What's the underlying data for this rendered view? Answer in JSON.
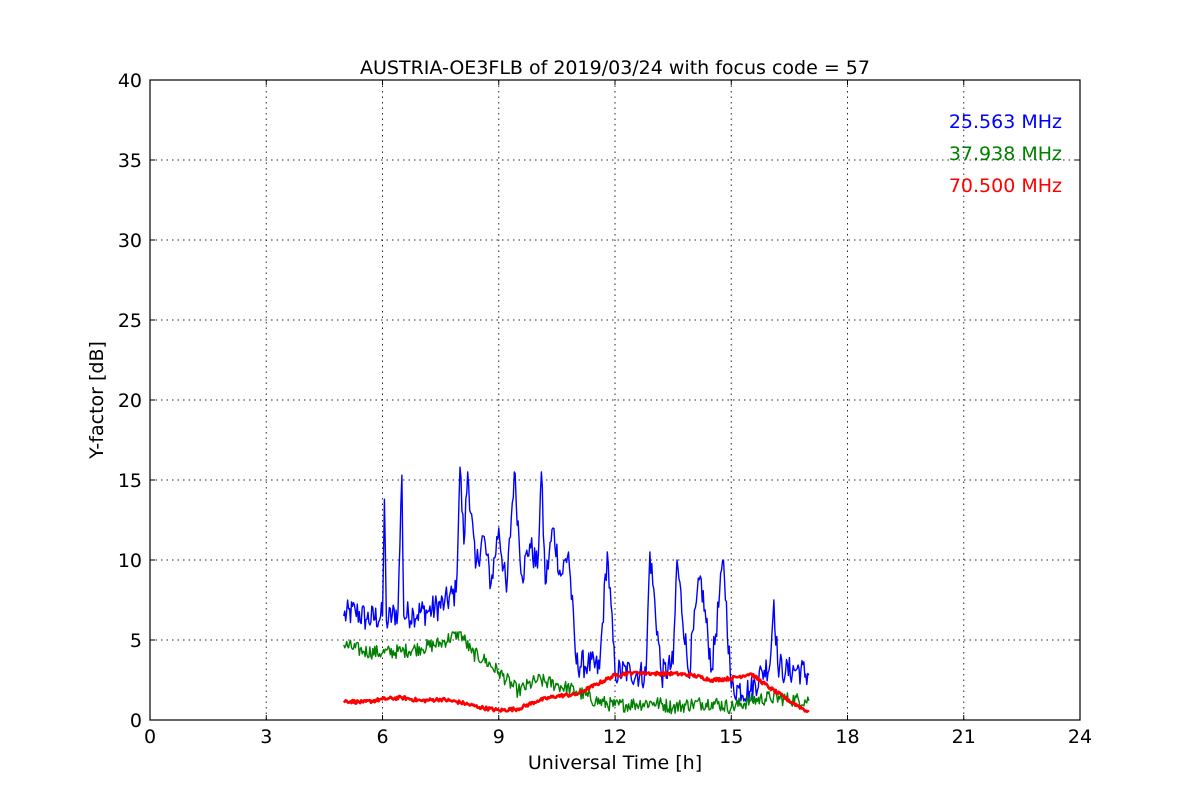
{
  "chart_data": {
    "type": "line",
    "title": "AUSTRIA-OE3FLB of 2019/03/24 with focus code = 57",
    "xlabel": "Universal Time [h]",
    "ylabel": "Y-factor [dB]",
    "xlim": [
      0,
      24
    ],
    "ylim": [
      0,
      40
    ],
    "xticks": [
      "0",
      "3",
      "6",
      "9",
      "12",
      "15",
      "18",
      "21",
      "24"
    ],
    "yticks": [
      "0",
      "5",
      "10",
      "15",
      "20",
      "25",
      "30",
      "35",
      "40"
    ],
    "grid": true,
    "legend_position": "top-right",
    "series": [
      {
        "name": "25.563 MHz",
        "color": "#0000ff",
        "x": [
          5.0,
          5.3,
          5.6,
          6.0,
          6.05,
          6.1,
          6.4,
          6.5,
          6.55,
          6.8,
          7.2,
          7.6,
          7.9,
          8.0,
          8.1,
          8.2,
          8.4,
          8.6,
          8.8,
          9.0,
          9.2,
          9.4,
          9.6,
          9.8,
          10.0,
          10.1,
          10.2,
          10.4,
          10.6,
          10.8,
          11.0,
          11.3,
          11.6,
          11.8,
          12.0,
          12.4,
          12.8,
          12.9,
          13.2,
          13.5,
          13.6,
          13.9,
          14.2,
          14.5,
          14.8,
          15.0,
          15.2,
          15.5,
          15.8,
          16.0,
          16.1,
          16.2,
          16.4,
          16.7,
          17.0
        ],
        "y": [
          6.5,
          6.8,
          6.3,
          6.5,
          13.8,
          6.2,
          6.8,
          15.3,
          6.5,
          6.7,
          6.8,
          7.3,
          8.0,
          15.8,
          11.0,
          15.5,
          9.5,
          11.5,
          8.5,
          12.0,
          8.0,
          15.5,
          9.0,
          11.0,
          9.5,
          15.5,
          8.5,
          12.0,
          9.0,
          10.5,
          3.5,
          3.5,
          3.2,
          10.5,
          3.0,
          3.0,
          2.8,
          10.5,
          2.8,
          3.5,
          10.0,
          3.0,
          9.0,
          3.2,
          10.0,
          2.0,
          2.0,
          1.8,
          3.0,
          3.5,
          7.5,
          3.5,
          3.0,
          3.2,
          2.8
        ]
      },
      {
        "name": "37.938 MHz",
        "color": "#008000",
        "x": [
          5.0,
          5.5,
          6.0,
          6.5,
          7.0,
          7.5,
          8.0,
          8.3,
          8.6,
          9.0,
          9.5,
          10.0,
          10.5,
          11.0,
          11.5,
          12.0,
          12.5,
          13.0,
          13.5,
          14.0,
          14.5,
          15.0,
          15.5,
          16.0,
          16.5,
          17.0
        ],
        "y": [
          4.7,
          4.3,
          4.2,
          4.3,
          4.5,
          4.8,
          5.5,
          4.2,
          3.8,
          3.0,
          1.8,
          2.5,
          2.2,
          1.8,
          1.2,
          0.9,
          1.0,
          1.1,
          0.8,
          1.0,
          1.1,
          0.8,
          1.2,
          1.4,
          1.3,
          1.2
        ]
      },
      {
        "name": "70.500 MHz",
        "color": "#ff0000",
        "x": [
          5.0,
          5.5,
          6.0,
          6.5,
          7.0,
          7.5,
          8.0,
          8.5,
          9.0,
          9.5,
          10.0,
          10.5,
          11.0,
          11.5,
          12.0,
          12.5,
          13.0,
          13.5,
          14.0,
          14.5,
          15.0,
          15.5,
          16.0,
          16.5,
          17.0
        ],
        "y": [
          1.2,
          1.1,
          1.3,
          1.4,
          1.2,
          1.3,
          1.1,
          0.8,
          0.6,
          0.7,
          1.2,
          1.5,
          1.6,
          2.2,
          2.8,
          3.0,
          2.9,
          2.9,
          2.8,
          2.5,
          2.6,
          2.9,
          2.0,
          1.2,
          0.5
        ]
      }
    ]
  }
}
